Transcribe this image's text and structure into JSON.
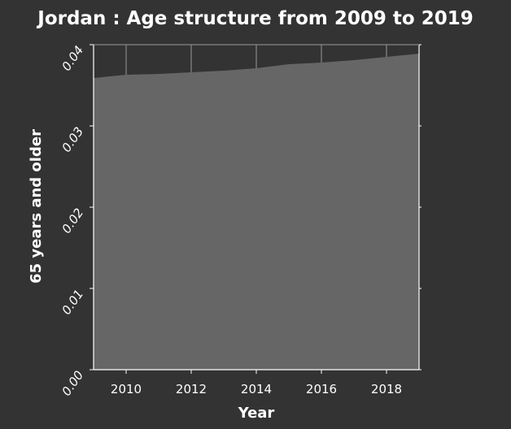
{
  "colors": {
    "background": "#333333",
    "area_fill": "#666666",
    "text": "#ffffff"
  },
  "chart_data": {
    "type": "area",
    "title": "Jordan : Age structure from 2009 to 2019",
    "xlabel": "Year",
    "ylabel": "65 years and older",
    "xlim": [
      2009,
      2019
    ],
    "ylim": [
      0,
      0.04
    ],
    "x_ticks": [
      2010,
      2012,
      2014,
      2016,
      2018
    ],
    "x_tick_labels": [
      "2010",
      "2012",
      "2014",
      "2016",
      "2018"
    ],
    "y_ticks": [
      0,
      0.01,
      0.02,
      0.03,
      0.04
    ],
    "y_tick_labels": [
      "0.00",
      "0.01",
      "0.02",
      "0.03",
      "0.04"
    ],
    "grid": "vertical gridlines at x ticks",
    "series": [
      {
        "x": [
          2009,
          2010,
          2011,
          2012,
          2013,
          2014,
          2015,
          2016,
          2017,
          2018,
          2019
        ],
        "values": [
          0.0359,
          0.0363,
          0.0364,
          0.0366,
          0.0368,
          0.0371,
          0.0376,
          0.0378,
          0.0381,
          0.0385,
          0.0389
        ]
      }
    ]
  }
}
